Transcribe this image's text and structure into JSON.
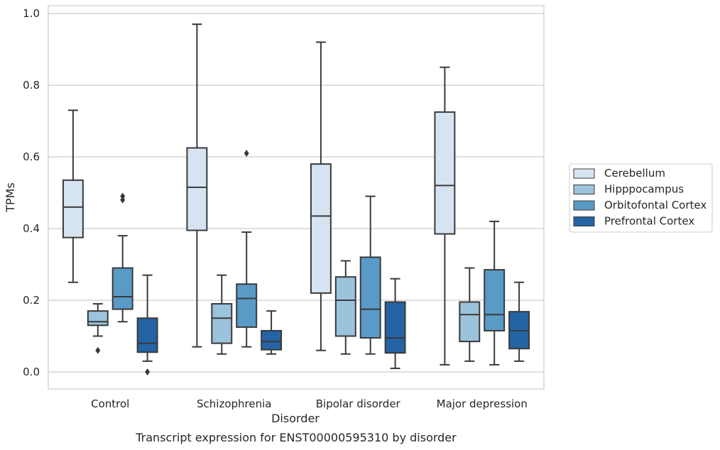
{
  "chart_data": {
    "type": "box",
    "title": "",
    "caption": "Transcript expression for ENST00000595310 by disorder",
    "xlabel": "Disorder",
    "ylabel": "TPMs",
    "ylim": [
      -0.045,
      1.02
    ],
    "yticks": [
      0.0,
      0.2,
      0.4,
      0.6,
      0.8,
      1.0
    ],
    "ytick_labels": [
      "0.0",
      "0.2",
      "0.4",
      "0.6",
      "0.8",
      "1.0"
    ],
    "grid": true,
    "legend_position": "right",
    "categories": [
      "Control",
      "Schizophrenia",
      "Bipolar disorder",
      "Major depression"
    ],
    "series": [
      {
        "name": "Cerebellum",
        "color": "#d6e4f2",
        "boxes": [
          {
            "whislo": 0.25,
            "q1": 0.375,
            "med": 0.46,
            "q3": 0.535,
            "whishi": 0.73,
            "fliers": []
          },
          {
            "whislo": 0.07,
            "q1": 0.395,
            "med": 0.515,
            "q3": 0.625,
            "whishi": 0.97,
            "fliers": []
          },
          {
            "whislo": 0.06,
            "q1": 0.22,
            "med": 0.435,
            "q3": 0.58,
            "whishi": 0.92,
            "fliers": []
          },
          {
            "whislo": 0.02,
            "q1": 0.385,
            "med": 0.52,
            "q3": 0.725,
            "whishi": 0.85,
            "fliers": []
          }
        ]
      },
      {
        "name": "Hipppocampus",
        "color": "#9cc3dc",
        "boxes": [
          {
            "whislo": 0.1,
            "q1": 0.13,
            "med": 0.14,
            "q3": 0.17,
            "whishi": 0.19,
            "fliers": [
              0.06
            ]
          },
          {
            "whislo": 0.05,
            "q1": 0.08,
            "med": 0.15,
            "q3": 0.19,
            "whishi": 0.27,
            "fliers": []
          },
          {
            "whislo": 0.05,
            "q1": 0.1,
            "med": 0.2,
            "q3": 0.265,
            "whishi": 0.31,
            "fliers": []
          },
          {
            "whislo": 0.03,
            "q1": 0.085,
            "med": 0.16,
            "q3": 0.195,
            "whishi": 0.29,
            "fliers": []
          }
        ]
      },
      {
        "name": "Orbitofontal Cortex",
        "color": "#5a9ac6",
        "boxes": [
          {
            "whislo": 0.14,
            "q1": 0.175,
            "med": 0.21,
            "q3": 0.29,
            "whishi": 0.38,
            "fliers": [
              0.48,
              0.49
            ]
          },
          {
            "whislo": 0.07,
            "q1": 0.125,
            "med": 0.205,
            "q3": 0.245,
            "whishi": 0.39,
            "fliers": [
              0.61
            ]
          },
          {
            "whislo": 0.05,
            "q1": 0.095,
            "med": 0.175,
            "q3": 0.32,
            "whishi": 0.49,
            "fliers": []
          },
          {
            "whislo": 0.02,
            "q1": 0.115,
            "med": 0.16,
            "q3": 0.285,
            "whishi": 0.42,
            "fliers": []
          }
        ]
      },
      {
        "name": "Prefrontal Cortex",
        "color": "#2464a5",
        "boxes": [
          {
            "whislo": 0.03,
            "q1": 0.055,
            "med": 0.08,
            "q3": 0.15,
            "whishi": 0.27,
            "fliers": [
              0.0
            ]
          },
          {
            "whislo": 0.05,
            "q1": 0.062,
            "med": 0.085,
            "q3": 0.115,
            "whishi": 0.17,
            "fliers": []
          },
          {
            "whislo": 0.01,
            "q1": 0.053,
            "med": 0.095,
            "q3": 0.195,
            "whishi": 0.26,
            "fliers": []
          },
          {
            "whislo": 0.03,
            "q1": 0.065,
            "med": 0.115,
            "q3": 0.168,
            "whishi": 0.25,
            "fliers": []
          }
        ]
      }
    ]
  }
}
